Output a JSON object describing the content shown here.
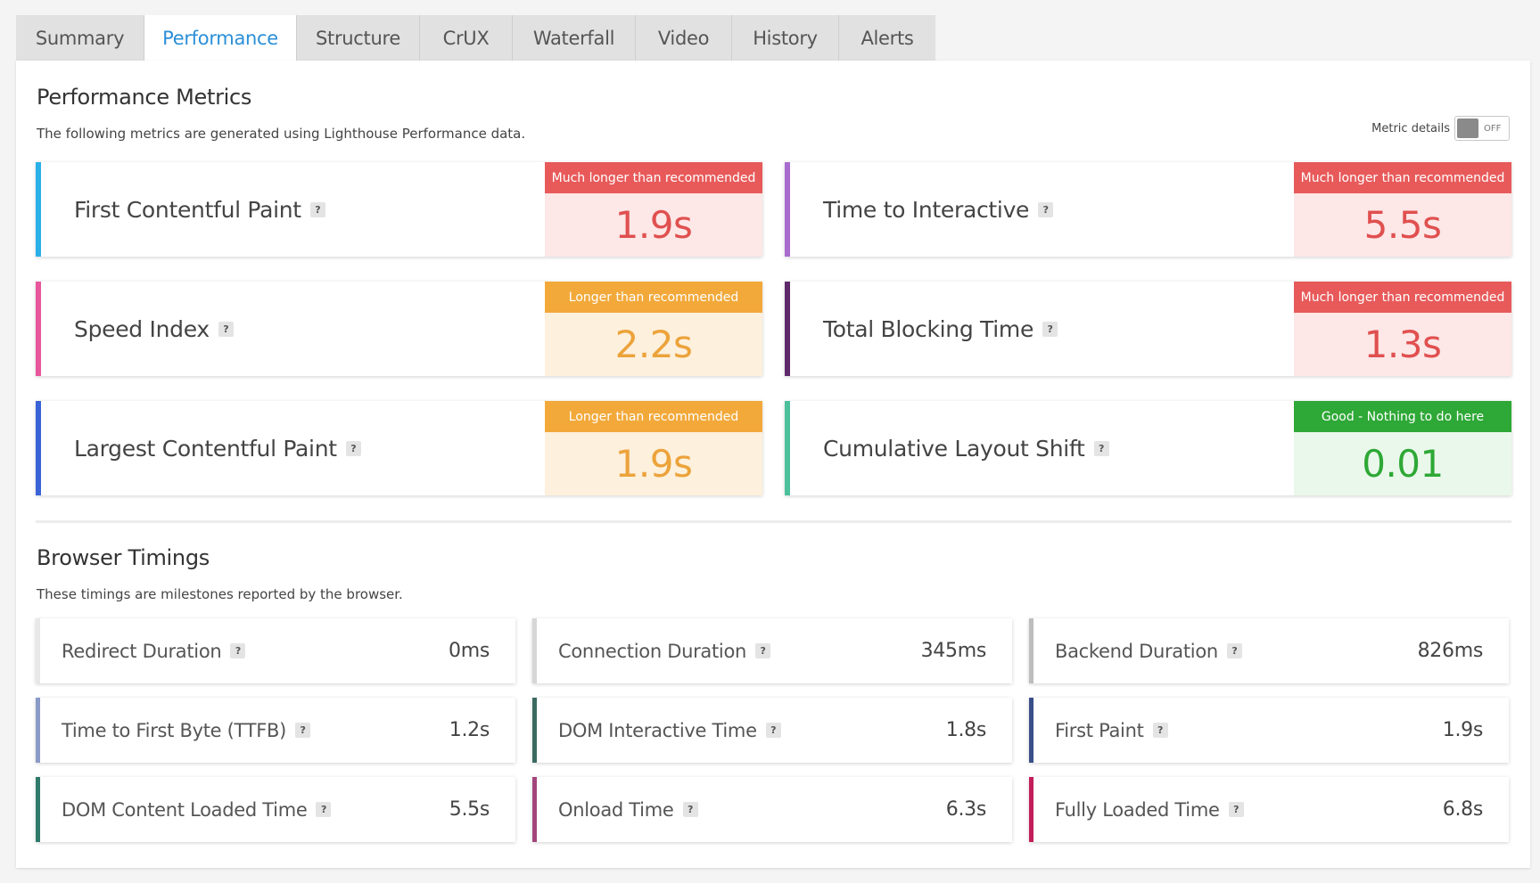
{
  "tabs": [
    {
      "label": "Summary",
      "active": false
    },
    {
      "label": "Performance",
      "active": true
    },
    {
      "label": "Structure",
      "active": false
    },
    {
      "label": "CrUX",
      "active": false
    },
    {
      "label": "Waterfall",
      "active": false
    },
    {
      "label": "Video",
      "active": false
    },
    {
      "label": "History",
      "active": false
    },
    {
      "label": "Alerts",
      "active": false
    }
  ],
  "performance": {
    "title": "Performance Metrics",
    "description": "The following metrics are generated using Lighthouse Performance data.",
    "toggle": {
      "label": "Metric details",
      "state": "OFF"
    },
    "metrics": [
      {
        "name": "First Contentful Paint",
        "help": "?",
        "grade": "Much longer than recommended",
        "value": "1.9s",
        "status": "bad",
        "accent": "#2ab0e8"
      },
      {
        "name": "Time to Interactive",
        "help": "?",
        "grade": "Much longer than recommended",
        "value": "5.5s",
        "status": "bad",
        "accent": "#a86ccf"
      },
      {
        "name": "Speed Index",
        "help": "?",
        "grade": "Longer than recommended",
        "value": "2.2s",
        "status": "warn",
        "accent": "#e8569b"
      },
      {
        "name": "Total Blocking Time",
        "help": "?",
        "grade": "Much longer than recommended",
        "value": "1.3s",
        "status": "bad",
        "accent": "#5e2a6a"
      },
      {
        "name": "Largest Contentful Paint",
        "help": "?",
        "grade": "Longer than recommended",
        "value": "1.9s",
        "status": "warn",
        "accent": "#3a63d8"
      },
      {
        "name": "Cumulative Layout Shift",
        "help": "?",
        "grade": "Good - Nothing to do here",
        "value": "0.01",
        "status": "good",
        "accent": "#4cc09a"
      }
    ]
  },
  "browser": {
    "title": "Browser Timings",
    "description": "These timings are milestones reported by the browser.",
    "timings": [
      {
        "name": "Redirect Duration",
        "help": "?",
        "value": "0ms",
        "accent": "#e8e8e8"
      },
      {
        "name": "Connection Duration",
        "help": "?",
        "value": "345ms",
        "accent": "#d6d6d6"
      },
      {
        "name": "Backend Duration",
        "help": "?",
        "value": "826ms",
        "accent": "#bdbdbd"
      },
      {
        "name": "Time to First Byte (TTFB)",
        "help": "?",
        "value": "1.2s",
        "accent": "#8a9bc8"
      },
      {
        "name": "DOM Interactive Time",
        "help": "?",
        "value": "1.8s",
        "accent": "#3a6a62"
      },
      {
        "name": "First Paint",
        "help": "?",
        "value": "1.9s",
        "accent": "#3a4f88"
      },
      {
        "name": "DOM Content Loaded Time",
        "help": "?",
        "value": "5.5s",
        "accent": "#2f7a6a"
      },
      {
        "name": "Onload Time",
        "help": "?",
        "value": "6.3s",
        "accent": "#a3457a"
      },
      {
        "name": "Fully Loaded Time",
        "help": "?",
        "value": "6.8s",
        "accent": "#c21e5a"
      }
    ]
  }
}
